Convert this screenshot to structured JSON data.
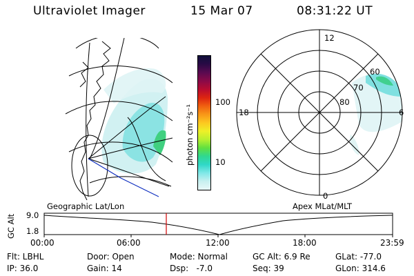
{
  "header": {
    "title": "Ultraviolet Imager",
    "date": "15 Mar 07",
    "time": "08:31:22 UT"
  },
  "colorbar": {
    "label": "photon cm⁻²s⁻¹",
    "ticks": [
      "100",
      "10"
    ],
    "colors": [
      "#10103a",
      "#2a0a45",
      "#5a0a50",
      "#8a0a48",
      "#b80c30",
      "#dd2410",
      "#f06010",
      "#f89818",
      "#fcc820",
      "#eef028",
      "#b8f030",
      "#60e040",
      "#30d890",
      "#30d8c8",
      "#80e8e8",
      "#c8f0f0",
      "#e8f8f8"
    ]
  },
  "left_panel": {
    "caption": "Geographic Lat/Lon"
  },
  "polar": {
    "caption": "Apex MLat/MLT",
    "mlt_labels": [
      "12",
      "18",
      "6",
      "0"
    ],
    "mlat_labels": [
      "60",
      "70",
      "80"
    ]
  },
  "timeline": {
    "axis_label": "GC Alt",
    "y_ticks": [
      "9.0",
      "1.8"
    ],
    "x_ticks": [
      "00:00",
      "06:00",
      "12:00",
      "18:00",
      "23:59"
    ],
    "marker_time": "08:31"
  },
  "status": {
    "row1": {
      "filter": "Flt: LBHL",
      "door": "Door: Open",
      "mode": "Mode: Normal",
      "gc_alt": "GC Alt: 6.9 Re",
      "glat": "GLat: -77.0"
    },
    "row2": {
      "ip": "IP: 36.0",
      "gain": "Gain: 14",
      "dsp": "Dsp:   -7.0",
      "seq": "Seq: 39",
      "glon": "GLon: 314.6"
    }
  }
}
